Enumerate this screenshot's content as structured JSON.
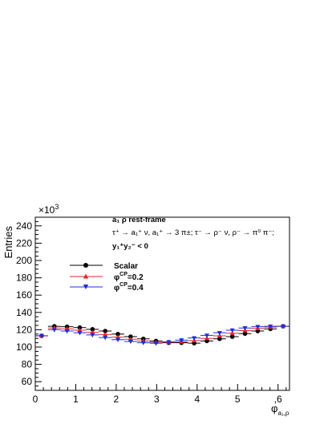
{
  "chart_data": {
    "type": "scatter",
    "xlabel": "φ",
    "xlabel_sub": "a₁,ρ",
    "ylabel": "Entries",
    "y_multiplier": "×10",
    "y_multiplier_exp": "3",
    "xlim": [
      0,
      6.2832
    ],
    "ylim": [
      50,
      250
    ],
    "x_ticks": [
      0,
      1,
      2,
      3,
      4,
      5,
      6
    ],
    "x_tick_labels": [
      "0",
      "1",
      "2",
      "3",
      "4",
      "5",
      ",6"
    ],
    "y_ticks": [
      60,
      80,
      100,
      120,
      140,
      160,
      180,
      200,
      220,
      240
    ],
    "y_tick_labels": [
      "60",
      "80",
      "100",
      "120",
      "140",
      "160",
      "180",
      "200",
      "220",
      "240"
    ],
    "annotation": {
      "line1": "a₁ ρ  rest-frame",
      "line2": "τ⁺ → a₁⁺ ν, a₁⁺ → 3 π±; τ⁻ → ρ⁻ ν, ρ⁻ → π⁰ π⁻;",
      "line3": "y₁⁺y₂⁻ < 0"
    },
    "legend_position": "top-left",
    "series": [
      {
        "name": "Scalar",
        "legend_label": "Scalar",
        "color": "#000000",
        "marker": "circle",
        "x": [
          0.1571,
          0.4712,
          0.7854,
          1.0996,
          1.4137,
          1.7279,
          2.042,
          2.3562,
          2.6704,
          2.9845,
          3.2987,
          3.6128,
          3.927,
          4.2412,
          4.5553,
          4.8695,
          5.1836,
          5.4978,
          5.8119,
          6.1261
        ],
        "values": [
          113,
          124,
          123.5,
          122.5,
          120.5,
          118.5,
          115,
          112,
          109.5,
          107,
          105,
          105,
          104.5,
          107,
          109.5,
          112,
          115.5,
          118.5,
          121,
          124
        ]
      },
      {
        "name": "φ^CP=0.2",
        "legend_label": "φ",
        "legend_sup": "CP",
        "legend_suffix": "=0.2",
        "color": "#e8262b",
        "marker": "triangle-up",
        "x": [
          0.1571,
          0.4712,
          0.7854,
          1.0996,
          1.4137,
          1.7279,
          2.042,
          2.3562,
          2.6704,
          2.9845,
          3.2987,
          3.6128,
          3.927,
          4.2412,
          4.5553,
          4.8695,
          5.1836,
          5.4978,
          5.8119,
          6.1261
        ],
        "values": [
          113,
          122,
          121,
          119.5,
          117,
          114.5,
          111.5,
          109,
          107,
          105.5,
          105.5,
          106,
          107.5,
          110,
          113,
          116,
          119,
          121.5,
          123,
          124
        ]
      },
      {
        "name": "φ^CP=0.4",
        "legend_label": "φ",
        "legend_sup": "CP",
        "legend_suffix": "=0.4",
        "color": "#1f2fd6",
        "marker": "triangle-down",
        "x": [
          0.1571,
          0.4712,
          0.7854,
          1.0996,
          1.4137,
          1.7279,
          2.042,
          2.3562,
          2.6704,
          2.9845,
          3.2987,
          3.6128,
          3.927,
          4.2412,
          4.5553,
          4.8695,
          5.1836,
          5.4978,
          5.8119,
          6.1261
        ],
        "values": [
          113,
          120,
          118.5,
          116.5,
          114,
          111,
          108.5,
          106.5,
          105,
          104.5,
          106,
          108,
          110.5,
          113.5,
          116.5,
          119.5,
          122,
          123.5,
          124,
          124
        ]
      }
    ]
  }
}
